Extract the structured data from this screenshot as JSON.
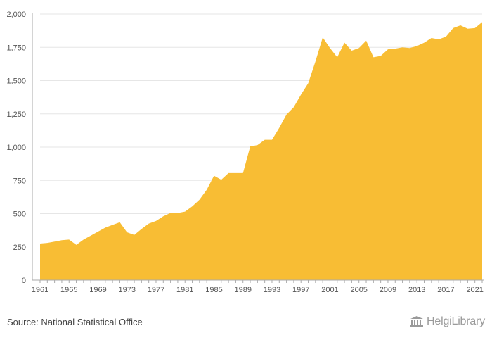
{
  "chart_data": {
    "type": "area",
    "x": [
      1961,
      1962,
      1963,
      1964,
      1965,
      1966,
      1967,
      1968,
      1969,
      1970,
      1971,
      1972,
      1973,
      1974,
      1975,
      1976,
      1977,
      1978,
      1979,
      1980,
      1981,
      1982,
      1983,
      1984,
      1985,
      1986,
      1987,
      1988,
      1989,
      1990,
      1991,
      1992,
      1993,
      1994,
      1995,
      1996,
      1997,
      1998,
      1999,
      2000,
      2001,
      2002,
      2003,
      2004,
      2005,
      2006,
      2007,
      2008,
      2009,
      2010,
      2011,
      2012,
      2013,
      2014,
      2015,
      2016,
      2017,
      2018,
      2019,
      2020,
      2021,
      2022
    ],
    "series": [
      {
        "values": [
          275,
          280,
          290,
          300,
          305,
          265,
          305,
          335,
          365,
          395,
          415,
          435,
          360,
          340,
          385,
          425,
          445,
          480,
          505,
          505,
          515,
          555,
          605,
          680,
          785,
          755,
          805,
          805,
          805,
          1005,
          1015,
          1055,
          1055,
          1145,
          1245,
          1300,
          1395,
          1480,
          1645,
          1825,
          1745,
          1675,
          1785,
          1725,
          1745,
          1800,
          1675,
          1685,
          1735,
          1740,
          1750,
          1745,
          1760,
          1785,
          1820,
          1810,
          1830,
          1895,
          1915,
          1890,
          1895,
          1940
        ]
      }
    ],
    "x_ticks": [
      "1961",
      "1965",
      "1969",
      "1973",
      "1977",
      "1981",
      "1985",
      "1989",
      "1993",
      "1997",
      "2001",
      "2005",
      "2009",
      "2013",
      "2017",
      "2021"
    ],
    "y_ticks": [
      "0",
      "250",
      "500",
      "750",
      "1,000",
      "1,250",
      "1,500",
      "1,750",
      "2,000"
    ],
    "ylim": [
      0,
      2000
    ],
    "xlim": [
      1961,
      2022
    ],
    "grid": true,
    "colors": {
      "fill": "#F8BD34",
      "axis": "#aaaaaa",
      "grid": "#e6e6e6"
    }
  },
  "footer": {
    "source": "Source: National Statistical Office",
    "brand": "HelgiLibrary",
    "brand_icon": "library-columns-icon"
  }
}
